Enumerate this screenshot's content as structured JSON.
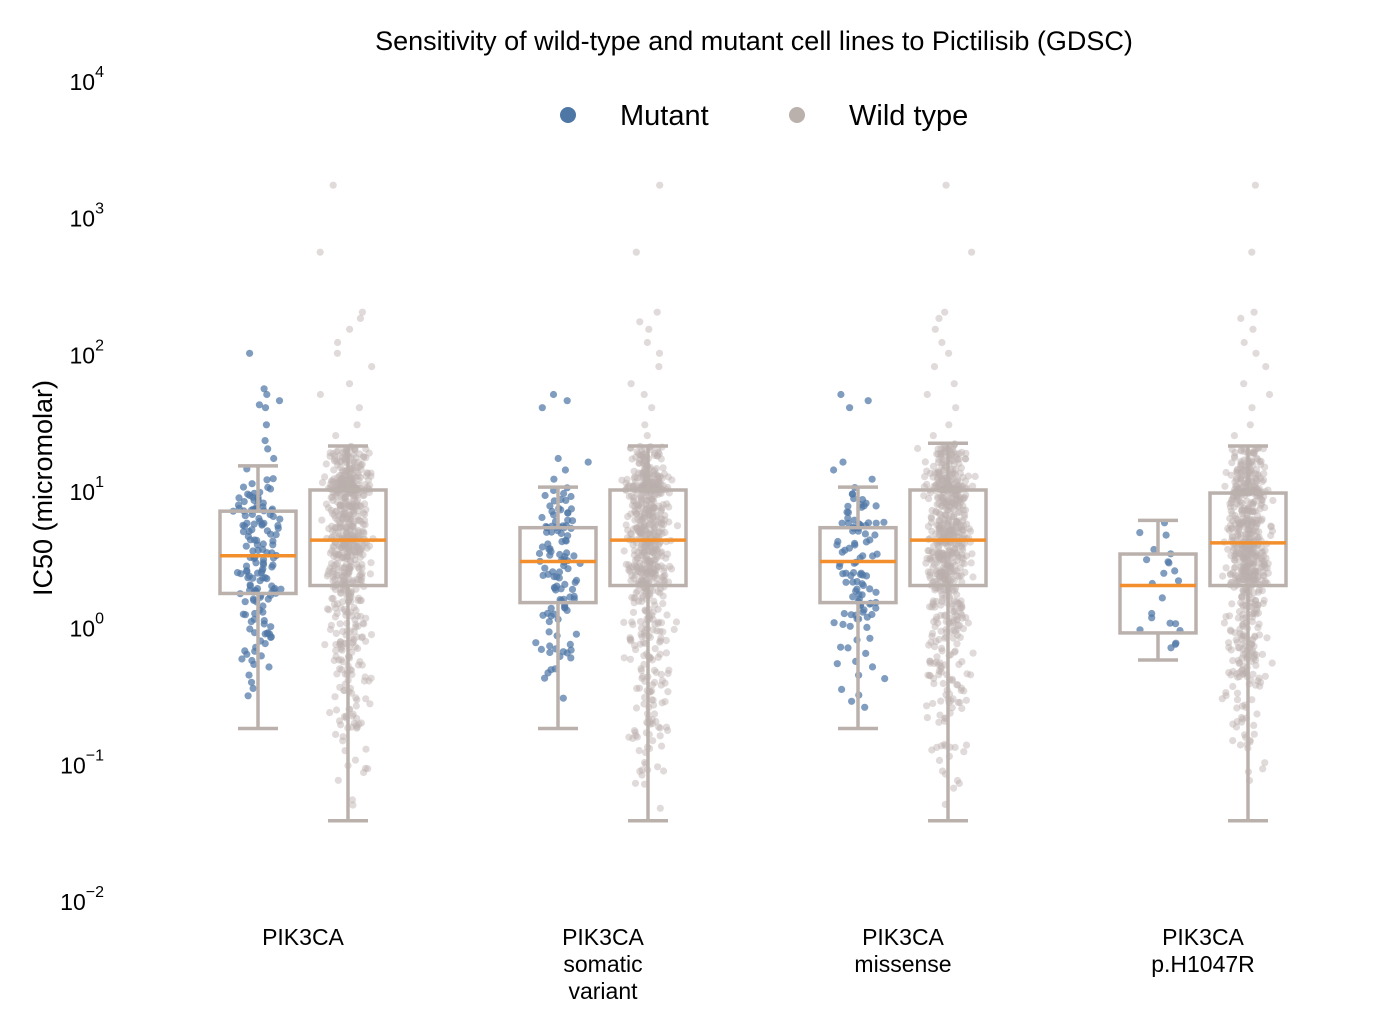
{
  "chart_data": {
    "type": "box-strip",
    "title": "Sensitivity of wild-type and mutant cell lines to Pictilisib (GDSC)",
    "ylabel": "IC50 (micromolar)",
    "xlabel": "",
    "y_scale": "log",
    "ylim": [
      0.01,
      10000
    ],
    "y_ticks": [
      {
        "value": 0.01,
        "base": "10",
        "exp": "−2"
      },
      {
        "value": 0.1,
        "base": "10",
        "exp": "−1"
      },
      {
        "value": 1,
        "base": "10",
        "exp": "0"
      },
      {
        "value": 10,
        "base": "10",
        "exp": "1"
      },
      {
        "value": 100,
        "base": "10",
        "exp": "2"
      },
      {
        "value": 1000,
        "base": "10",
        "exp": "3"
      },
      {
        "value": 10000,
        "base": "10",
        "exp": "4"
      }
    ],
    "grid": false,
    "legend": {
      "placement": "top-center",
      "entries": [
        {
          "label": "Mutant",
          "color": "#4f77a6"
        },
        {
          "label": "Wild type",
          "color": "#bab0ac"
        }
      ]
    },
    "colors": {
      "mutant": "#4f77a6",
      "wild_type": "#bab0ac",
      "median": "#f28e2b",
      "box": "#bab0ac"
    },
    "categories": [
      {
        "label_lines": [
          "PIK3CA"
        ],
        "mutant": {
          "whisker_low": 0.18,
          "q1": 1.75,
          "median": 3.3,
          "q3": 7.0,
          "whisker_high": 15,
          "n": 150,
          "spread_low": 0.18,
          "spread_high": 15,
          "outliers": [
            17,
            20,
            23,
            30,
            40,
            42,
            45,
            50,
            55,
            100
          ]
        },
        "wild_type": {
          "whisker_low": 0.038,
          "q1": 2.0,
          "median": 4.3,
          "q3": 10,
          "whisker_high": 21,
          "n": 650,
          "spread_low": 0.04,
          "spread_high": 21,
          "outliers": [
            25,
            30,
            40,
            50,
            60,
            80,
            100,
            120,
            150,
            180,
            200,
            550,
            1700
          ]
        }
      },
      {
        "label_lines": [
          "PIK3CA",
          "somatic",
          "variant"
        ],
        "mutant": {
          "whisker_low": 0.18,
          "q1": 1.5,
          "median": 3.0,
          "q3": 5.3,
          "whisker_high": 10.5,
          "n": 110,
          "spread_low": 0.18,
          "spread_high": 10.5,
          "outliers": [
            12,
            14,
            16,
            17,
            40,
            45,
            50
          ]
        },
        "wild_type": {
          "whisker_low": 0.038,
          "q1": 2.0,
          "median": 4.3,
          "q3": 10,
          "whisker_high": 21,
          "n": 650,
          "spread_low": 0.04,
          "spread_high": 21,
          "outliers": [
            25,
            30,
            40,
            50,
            60,
            80,
            100,
            120,
            150,
            170,
            200,
            550,
            1700
          ]
        }
      },
      {
        "label_lines": [
          "PIK3CA",
          "missense"
        ],
        "mutant": {
          "whisker_low": 0.18,
          "q1": 1.5,
          "median": 3.0,
          "q3": 5.3,
          "whisker_high": 10.5,
          "n": 105,
          "spread_low": 0.18,
          "spread_high": 10.5,
          "outliers": [
            12,
            14,
            16,
            40,
            45,
            50
          ]
        },
        "wild_type": {
          "whisker_low": 0.038,
          "q1": 2.0,
          "median": 4.3,
          "q3": 10,
          "whisker_high": 22,
          "n": 650,
          "spread_low": 0.04,
          "spread_high": 22,
          "outliers": [
            25,
            30,
            40,
            50,
            60,
            80,
            100,
            120,
            150,
            180,
            200,
            550,
            1700
          ]
        }
      },
      {
        "label_lines": [
          "PIK3CA",
          "p.H1047R"
        ],
        "mutant": {
          "whisker_low": 0.57,
          "q1": 0.9,
          "median": 2.0,
          "q3": 3.4,
          "whisker_high": 6.0,
          "n": 22,
          "spread_low": 0.57,
          "spread_high": 6.0,
          "outliers": []
        },
        "wild_type": {
          "whisker_low": 0.038,
          "q1": 2.0,
          "median": 4.1,
          "q3": 9.5,
          "whisker_high": 21,
          "n": 650,
          "spread_low": 0.04,
          "spread_high": 21,
          "outliers": [
            25,
            30,
            40,
            50,
            60,
            80,
            100,
            120,
            150,
            180,
            200,
            550,
            1700
          ]
        }
      }
    ]
  }
}
